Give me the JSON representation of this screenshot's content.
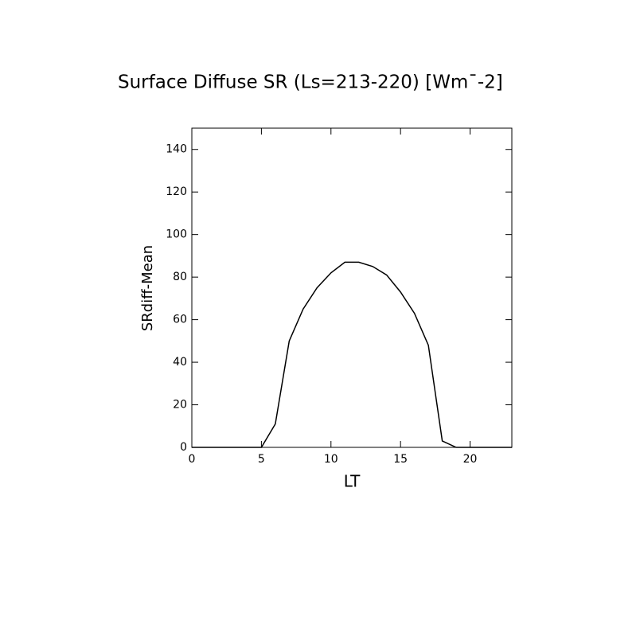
{
  "chart_data": {
    "type": "line",
    "title": "Surface Diffuse SR (Ls=213-220) [Wm¯-2]",
    "x_label": "LT",
    "y_label": "SRdiff-Mean",
    "x": [
      0,
      1,
      2,
      3,
      4,
      5,
      6,
      7,
      8,
      9,
      10,
      11,
      12,
      13,
      14,
      15,
      16,
      17,
      18,
      19,
      20,
      21,
      22,
      23
    ],
    "series": [
      {
        "color": "#000000",
        "values": [
          0,
          0,
          0,
          0,
          0,
          0,
          11,
          50,
          65,
          75,
          82,
          87,
          87,
          85,
          81,
          73,
          63,
          48,
          3,
          0,
          0,
          0,
          0,
          0
        ]
      }
    ],
    "xlim": [
      0,
      23
    ],
    "xticks": [
      0,
      5,
      10,
      15,
      20
    ],
    "ylim": [
      0,
      150
    ],
    "yticks": [
      0,
      20,
      40,
      60,
      80,
      100,
      120,
      140
    ],
    "grid": false
  }
}
